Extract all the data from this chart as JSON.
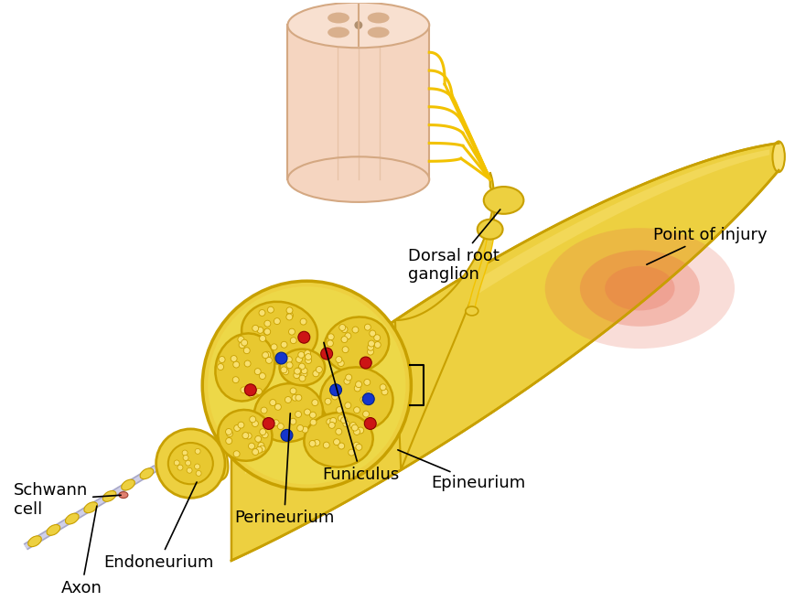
{
  "background_color": "#ffffff",
  "nerve_yellow": "#F2C200",
  "nerve_yellow_dark": "#C8A000",
  "nerve_yellow_mid": "#EDD040",
  "nerve_yellow_light": "#F8E070",
  "spinal_cord_color": "#F5D5C0",
  "spinal_cord_dark": "#D4A882",
  "injury_red": "#E07060",
  "red_dot": "#CC1515",
  "blue_dot": "#1535CC",
  "axon_color": "#C0C0D8",
  "labels": {
    "dorsal_root": "Dorsal root\nganglion",
    "point_of_injury": "Point of injury",
    "epineurium": "Epineurium",
    "funiculus": "Funiculus",
    "perineurium": "Perineurium",
    "endoneurium": "Endoneurium",
    "axon": "Axon",
    "schwann_cell": "Schwann\ncell"
  },
  "label_fontsize": 13,
  "figsize": [
    8.7,
    6.69
  ],
  "dpi": 100
}
